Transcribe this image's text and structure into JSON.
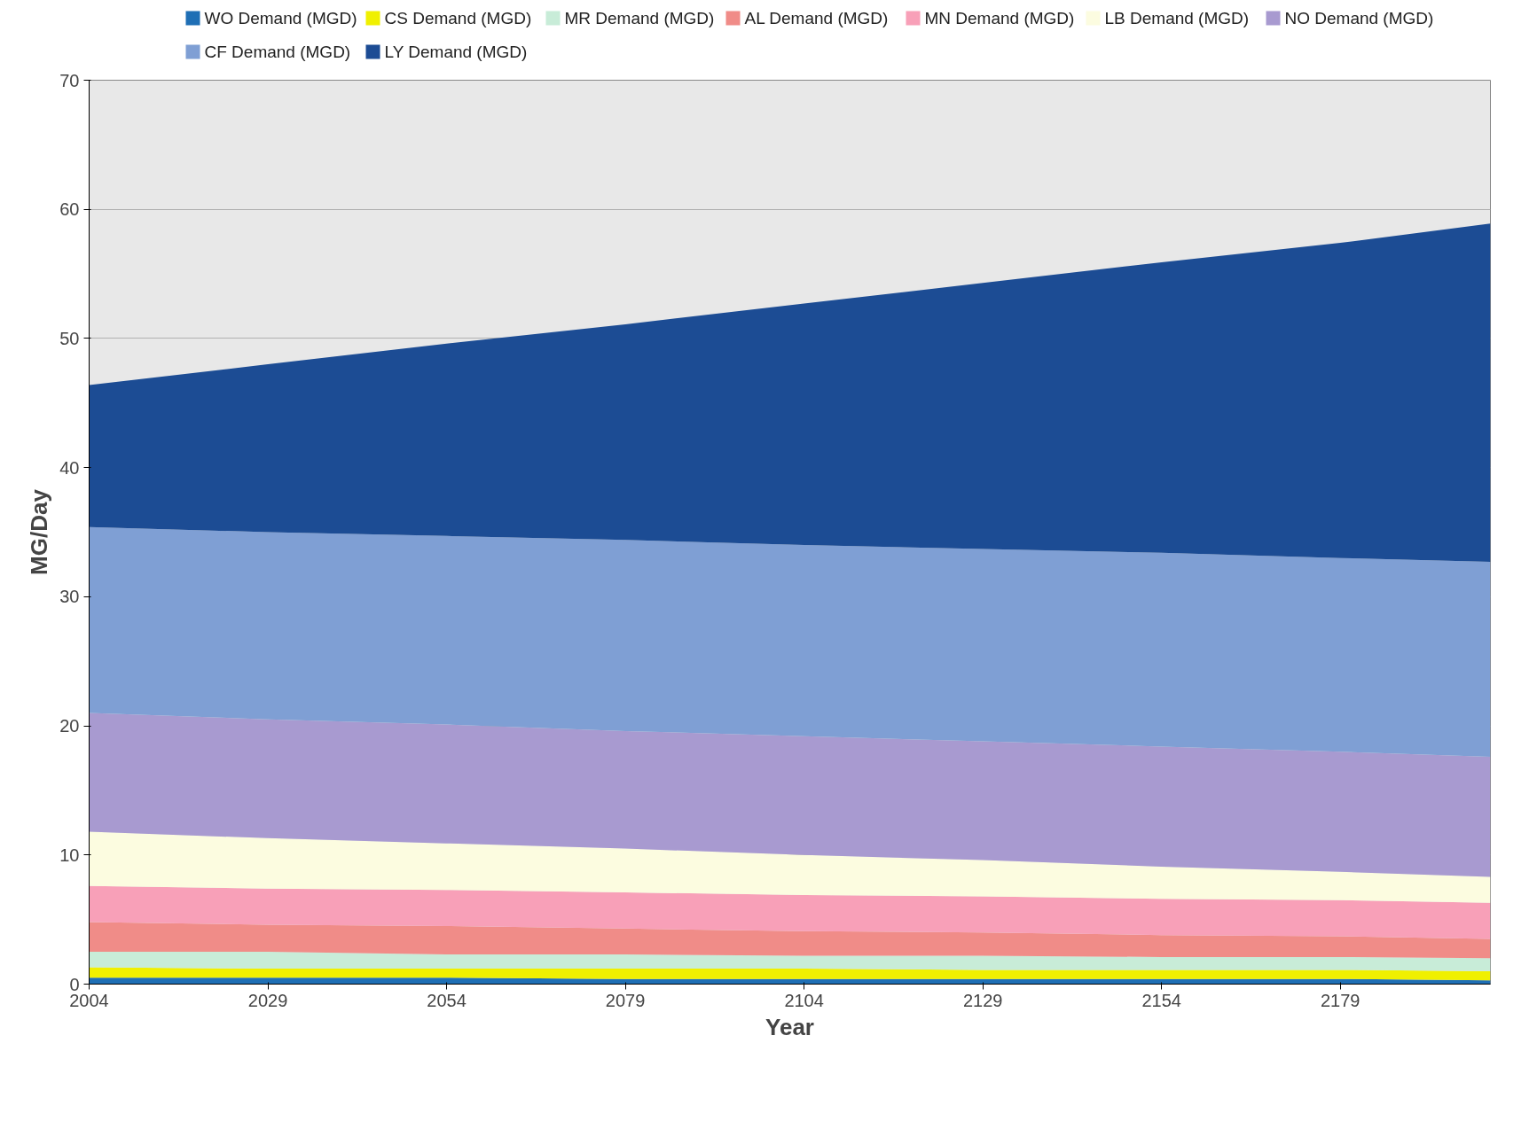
{
  "chart_data": {
    "type": "area",
    "stacked": true,
    "xlabel": "Year",
    "ylabel": "MG/Day",
    "x": [
      2004,
      2029,
      2054,
      2079,
      2104,
      2129,
      2154,
      2179,
      2200
    ],
    "xlim": [
      2004,
      2200
    ],
    "xticks": [
      2004,
      2029,
      2054,
      2079,
      2104,
      2129,
      2154,
      2179
    ],
    "ylim": [
      0,
      70
    ],
    "yticks": [
      0,
      10,
      20,
      30,
      40,
      50,
      60,
      70
    ],
    "grid": "y",
    "legend": "top",
    "series": [
      {
        "name": "WO Demand (MGD)",
        "color": "#1f6fb5",
        "values": [
          0.5,
          0.5,
          0.5,
          0.4,
          0.4,
          0.4,
          0.4,
          0.4,
          0.3
        ]
      },
      {
        "name": "CS Demand (MGD)",
        "color": "#f0f000",
        "values": [
          0.8,
          0.7,
          0.7,
          0.8,
          0.8,
          0.7,
          0.7,
          0.7,
          0.7
        ]
      },
      {
        "name": "MR Demand (MGD)",
        "color": "#c8ecd8",
        "values": [
          1.2,
          1.3,
          1.1,
          1.1,
          1.0,
          1.1,
          1.0,
          1.0,
          1.0
        ]
      },
      {
        "name": "AL Demand (MGD)",
        "color": "#f08c88",
        "values": [
          2.3,
          2.1,
          2.2,
          2.0,
          1.9,
          1.8,
          1.7,
          1.6,
          1.5
        ]
      },
      {
        "name": "MN Demand (MGD)",
        "color": "#f8a0b8",
        "values": [
          2.8,
          2.8,
          2.8,
          2.8,
          2.8,
          2.8,
          2.8,
          2.8,
          2.8
        ]
      },
      {
        "name": "LB Demand (MGD)",
        "color": "#fcfce0",
        "values": [
          4.2,
          3.9,
          3.6,
          3.4,
          3.1,
          2.8,
          2.5,
          2.2,
          2.0
        ]
      },
      {
        "name": "NO Demand (MGD)",
        "color": "#a89ad0",
        "values": [
          9.2,
          9.2,
          9.2,
          9.1,
          9.2,
          9.2,
          9.3,
          9.3,
          9.3
        ]
      },
      {
        "name": "CF Demand (MGD)",
        "color": "#7f9fd4",
        "values": [
          14.4,
          14.5,
          14.6,
          14.8,
          14.8,
          14.9,
          15.0,
          15.0,
          15.1
        ]
      },
      {
        "name": "LY Demand (MGD)",
        "color": "#1c4c94",
        "values": [
          11.0,
          13.0,
          14.9,
          16.7,
          18.7,
          20.6,
          22.5,
          24.4,
          26.2
        ]
      }
    ]
  }
}
